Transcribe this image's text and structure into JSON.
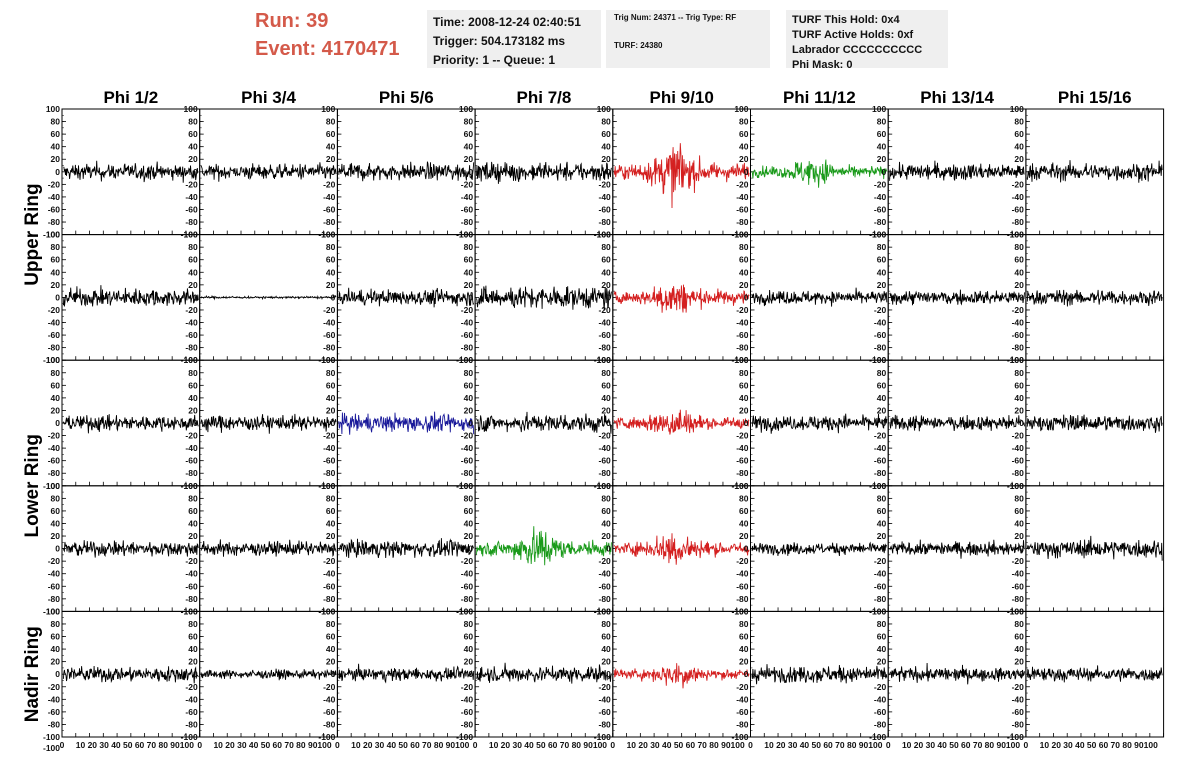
{
  "header": {
    "run_label": "Run:    39",
    "event_label": "Event: 4170471",
    "time": "Time: 2008-12-24 02:40:51",
    "trigger": "Trigger: 504.173182 ms",
    "priority": "Priority: 1 -- Queue: 1",
    "trig_num": "Trig Num: 24371 -- Trig Type: RF",
    "turf": "TURF: 24380",
    "turf_this_hold": "TURF This Hold: 0x4",
    "turf_active_holds": "TURF Active Holds: 0xf",
    "labrador": "Labrador CCCCCCCCCC",
    "phi_mask": "Phi Mask: 0"
  },
  "ring_titles": [
    "Upper Ring",
    "Lower Ring",
    "Nadir Ring"
  ],
  "colors": {
    "normal": "#000000",
    "red": "#d42020",
    "green": "#1a9a1a",
    "blue": "#1a1a9a"
  },
  "chart_data": {
    "type": "line",
    "columns": [
      "Phi 1/2",
      "Phi 3/4",
      "Phi 5/6",
      "Phi 7/8",
      "Phi 9/10",
      "Phi 11/12",
      "Phi 13/14",
      "Phi 15/16"
    ],
    "rows": 5,
    "xlim": [
      0,
      100
    ],
    "ylim": [
      -100,
      100
    ],
    "x_ticks": [
      0,
      10,
      20,
      30,
      40,
      50,
      60,
      70,
      80,
      90,
      100
    ],
    "y_ticks": [
      100,
      80,
      60,
      40,
      20,
      0,
      -20,
      -40,
      -60,
      -80,
      -100
    ],
    "x_tick_labels": "10 20 30 40 50 60 70 80 90100",
    "waveforms": [
      [
        {
          "amp": 15,
          "color": "normal"
        },
        {
          "amp": 14,
          "color": "normal"
        },
        {
          "amp": 16,
          "color": "normal"
        },
        {
          "amp": 18,
          "color": "normal"
        },
        {
          "amp": 28,
          "color": "red",
          "burst": 35
        },
        {
          "amp": 18,
          "color": "green",
          "burst": 20
        },
        {
          "amp": 15,
          "color": "normal"
        },
        {
          "amp": 16,
          "color": "normal"
        }
      ],
      [
        {
          "amp": 16,
          "color": "normal"
        },
        {
          "amp": 2,
          "color": "normal"
        },
        {
          "amp": 15,
          "color": "normal"
        },
        {
          "amp": 20,
          "color": "normal"
        },
        {
          "amp": 22,
          "color": "red",
          "burst": 25
        },
        {
          "amp": 12,
          "color": "normal"
        },
        {
          "amp": 13,
          "color": "normal"
        },
        {
          "amp": 14,
          "color": "normal"
        }
      ],
      [
        {
          "amp": 14,
          "color": "normal"
        },
        {
          "amp": 14,
          "color": "normal"
        },
        {
          "amp": 16,
          "color": "blue"
        },
        {
          "amp": 17,
          "color": "normal"
        },
        {
          "amp": 20,
          "color": "red",
          "burst": 20
        },
        {
          "amp": 14,
          "color": "normal"
        },
        {
          "amp": 14,
          "color": "normal"
        },
        {
          "amp": 15,
          "color": "normal"
        }
      ],
      [
        {
          "amp": 14,
          "color": "normal"
        },
        {
          "amp": 13,
          "color": "normal"
        },
        {
          "amp": 15,
          "color": "normal"
        },
        {
          "amp": 24,
          "color": "green",
          "burst": 25
        },
        {
          "amp": 22,
          "color": "red",
          "burst": 22
        },
        {
          "amp": 11,
          "color": "normal"
        },
        {
          "amp": 12,
          "color": "normal"
        },
        {
          "amp": 16,
          "color": "normal"
        }
      ],
      [
        {
          "amp": 14,
          "color": "normal"
        },
        {
          "amp": 8,
          "color": "normal"
        },
        {
          "amp": 12,
          "color": "normal"
        },
        {
          "amp": 15,
          "color": "normal"
        },
        {
          "amp": 16,
          "color": "red",
          "burst": 18
        },
        {
          "amp": 15,
          "color": "normal"
        },
        {
          "amp": 13,
          "color": "normal"
        },
        {
          "amp": 13,
          "color": "normal"
        }
      ]
    ]
  }
}
